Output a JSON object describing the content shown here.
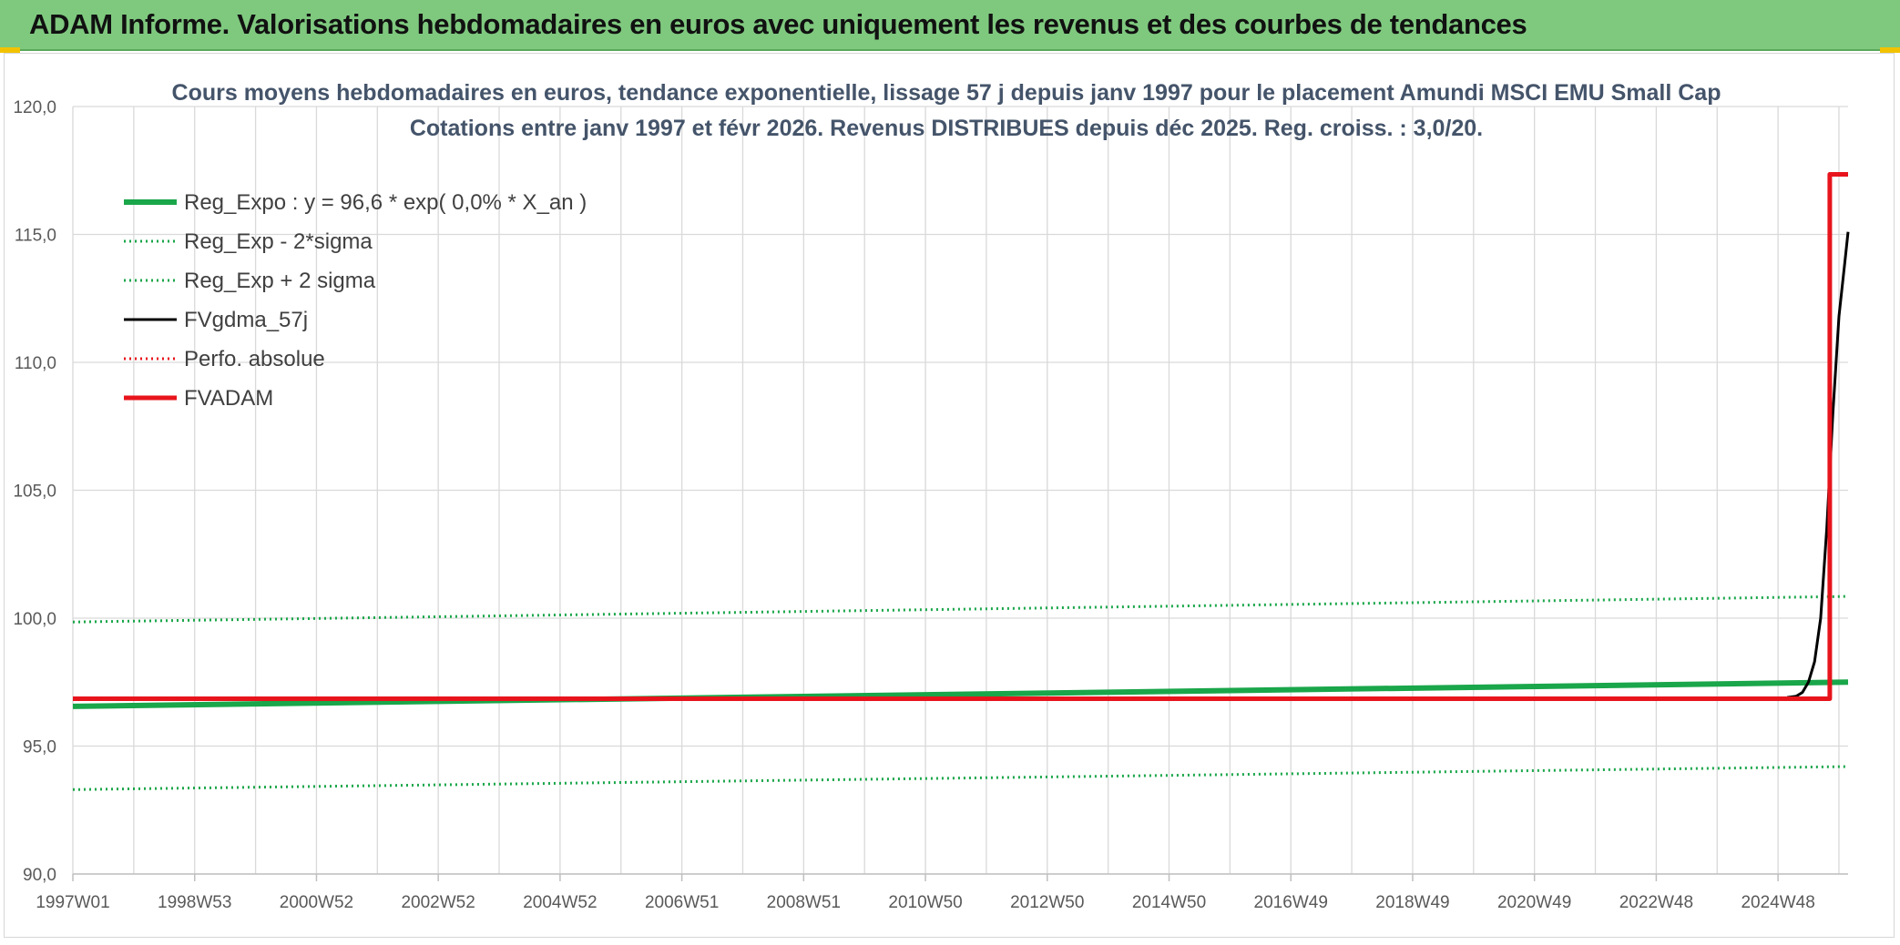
{
  "banner": {
    "title": "ADAM Informe. Valorisations hebdomadaires en euros avec uniquement les revenus et des courbes de tendances",
    "background": "#7fc97f"
  },
  "chart_data": {
    "type": "line",
    "title": "Cours moyens hebdomadaires en euros, tendance exponentielle, lissage 57 j depuis janv 1997 pour le placement Amundi MSCI EMU Small Cap",
    "subtitle": "Cotations entre janv 1997 et févr 2026. Revenus DISTRIBUES depuis déc 2025. Reg. croiss. : 3,0/20.",
    "xlabel": "",
    "ylabel": "",
    "ylim": [
      90,
      120
    ],
    "xlim": [
      1997.0,
      2026.15
    ],
    "y_ticks": [
      "90,0",
      "95,0",
      "100,0",
      "105,0",
      "110,0",
      "115,0",
      "120,0"
    ],
    "x_ticks": [
      {
        "label": "1997W01",
        "x": 1997.0
      },
      {
        "label": "1998W53",
        "x": 1999.0
      },
      {
        "label": "2000W52",
        "x": 2001.0
      },
      {
        "label": "2002W52",
        "x": 2003.0
      },
      {
        "label": "2004W52",
        "x": 2005.0
      },
      {
        "label": "2006W51",
        "x": 2007.0
      },
      {
        "label": "2008W51",
        "x": 2009.0
      },
      {
        "label": "2010W50",
        "x": 2011.0
      },
      {
        "label": "2012W50",
        "x": 2013.0
      },
      {
        "label": "2014W50",
        "x": 2015.0
      },
      {
        "label": "2016W49",
        "x": 2017.0
      },
      {
        "label": "2018W49",
        "x": 2019.0
      },
      {
        "label": "2020W49",
        "x": 2021.0
      },
      {
        "label": "2022W48",
        "x": 2023.0
      },
      {
        "label": "2024W48",
        "x": 2025.0
      }
    ],
    "grid": true,
    "legend_position": "top-left",
    "series": [
      {
        "name": "Reg_Expo : y = 96,6 * exp( 0,0% *  X_an )",
        "color": "#1aa64a",
        "style": "solid",
        "width": 6,
        "x": [
          1997.0,
          2026.15
        ],
        "y": [
          96.55,
          97.5
        ]
      },
      {
        "name": "Reg_Exp - 2*sigma",
        "color": "#1aa64a",
        "style": "dotted",
        "width": 3,
        "x": [
          1997.0,
          2026.15
        ],
        "y": [
          93.3,
          94.2
        ]
      },
      {
        "name": "Reg_Exp + 2 sigma",
        "color": "#1aa64a",
        "style": "dotted",
        "width": 3,
        "x": [
          1997.0,
          2026.15
        ],
        "y": [
          99.85,
          100.85
        ]
      },
      {
        "name": "FVgdma_57j",
        "color": "#000000",
        "style": "solid",
        "width": 3,
        "x": [
          2025.15,
          2025.3,
          2025.4,
          2025.5,
          2025.6,
          2025.7,
          2025.8,
          2025.9,
          2026.0,
          2026.1,
          2026.15
        ],
        "y": [
          96.9,
          96.95,
          97.1,
          97.5,
          98.3,
          100.0,
          103.5,
          108.0,
          111.8,
          114.0,
          115.1
        ]
      },
      {
        "name": "Perfo. absolue",
        "color": "#e8141c",
        "style": "dotted",
        "width": 3,
        "x": [],
        "y": []
      },
      {
        "name": "FVADAM",
        "color": "#e8141c",
        "style": "solid",
        "width": 5,
        "x": [
          1997.0,
          2025.85,
          2025.85,
          2026.15
        ],
        "y": [
          96.85,
          96.85,
          117.35,
          117.35
        ]
      }
    ]
  }
}
